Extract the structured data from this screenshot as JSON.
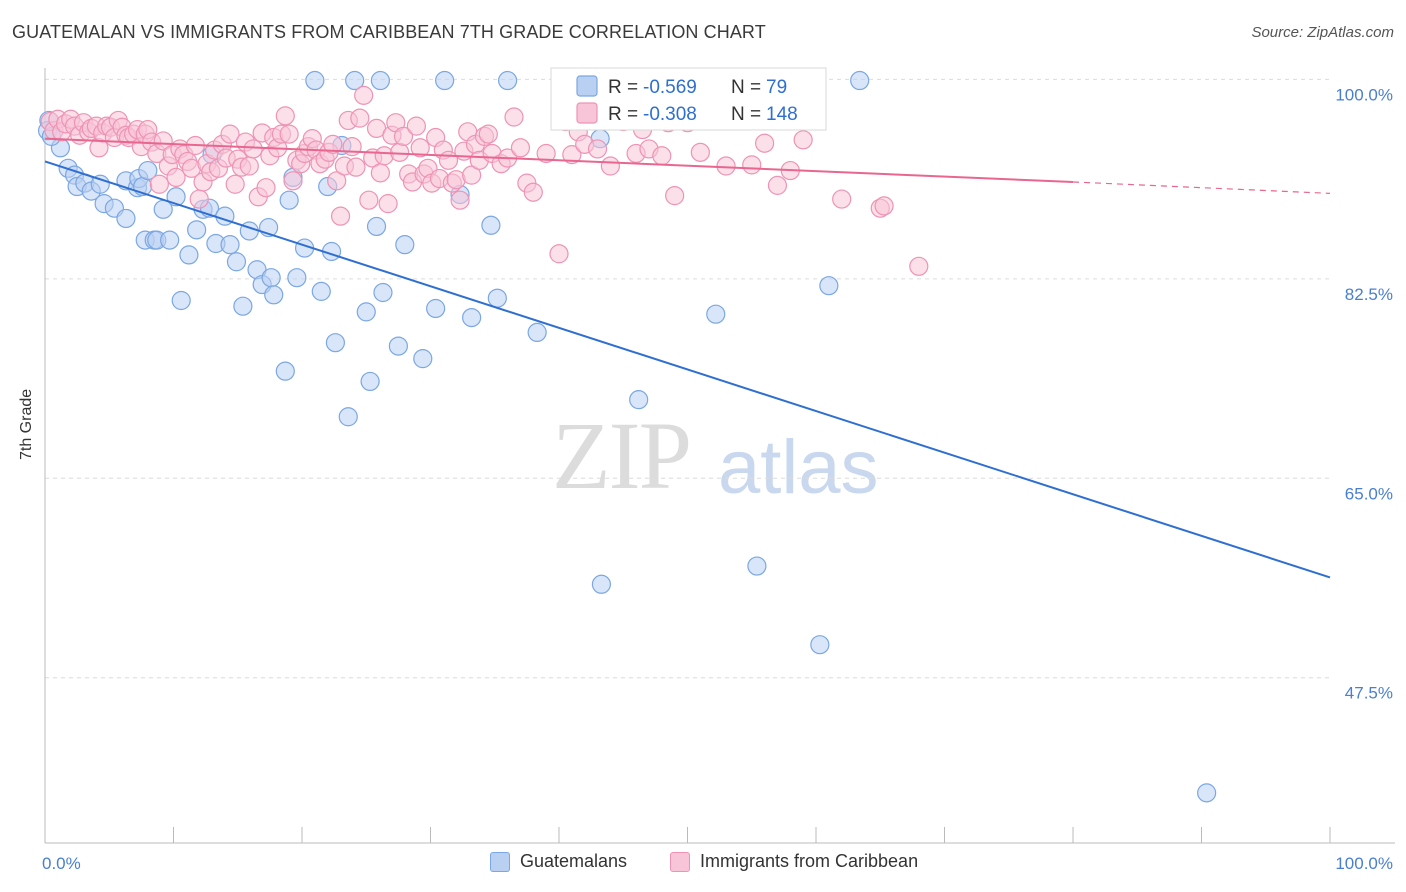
{
  "title": "GUATEMALAN VS IMMIGRANTS FROM CARIBBEAN 7TH GRADE CORRELATION CHART",
  "source": "Source: ZipAtlas.com",
  "watermark": {
    "zip": "ZIP",
    "atlas": "atlas"
  },
  "chart_data": {
    "type": "scatter",
    "xlabel": "",
    "ylabel": "7th Grade",
    "xlim": [
      0,
      100
    ],
    "ylim": [
      33,
      101
    ],
    "x_tick_labels": [
      "0.0%",
      "100.0%"
    ],
    "y_ticks": [
      {
        "value": 100,
        "label": "100.0%"
      },
      {
        "value": 82.5,
        "label": "82.5%"
      },
      {
        "value": 65,
        "label": "65.0%"
      },
      {
        "value": 47.5,
        "label": "47.5%"
      }
    ],
    "legend": [
      {
        "name": "Guatemalans",
        "r_label": "R =",
        "r": "-0.569",
        "n_label": "N =",
        "n": "79",
        "color": "#7ba7e3",
        "fill": "#b9d0f2",
        "line_color": "#2f6fd1"
      },
      {
        "name": "Immigrants from Caribbean",
        "r_label": "R =",
        "r": "-0.308",
        "n_label": "N =",
        "n": "148",
        "color": "#ee93b4",
        "fill": "#f7c5d7",
        "line_color": "#e8668f"
      }
    ],
    "series": [
      {
        "name": "Guatemalans",
        "trend": {
          "x": [
            0,
            100
          ],
          "y": [
            92.8,
            56.3
          ]
        },
        "points": [
          [
            0.3,
            96.4
          ],
          [
            1.2,
            94.0
          ],
          [
            1.8,
            92.2
          ],
          [
            2.3,
            91.6
          ],
          [
            2.5,
            90.6
          ],
          [
            3.1,
            90.9
          ],
          [
            3.6,
            90.2
          ],
          [
            4.3,
            90.8
          ],
          [
            4.6,
            89.1
          ],
          [
            5.4,
            88.7
          ],
          [
            6.3,
            91.1
          ],
          [
            6.3,
            87.8
          ],
          [
            7.2,
            90.5
          ],
          [
            7.3,
            91.3
          ],
          [
            7.6,
            90.6
          ],
          [
            8.0,
            92.0
          ],
          [
            7.8,
            85.9
          ],
          [
            8.5,
            85.9
          ],
          [
            8.7,
            85.9
          ],
          [
            9.7,
            85.9
          ],
          [
            9.2,
            88.6
          ],
          [
            10.2,
            89.7
          ],
          [
            10.6,
            80.6
          ],
          [
            11.2,
            84.6
          ],
          [
            11.8,
            86.8
          ],
          [
            12.3,
            88.6
          ],
          [
            12.8,
            88.7
          ],
          [
            13.0,
            93.4
          ],
          [
            13.3,
            85.6
          ],
          [
            14.0,
            88.0
          ],
          [
            14.4,
            85.5
          ],
          [
            14.9,
            84.0
          ],
          [
            15.4,
            80.1
          ],
          [
            15.9,
            86.7
          ],
          [
            16.5,
            83.3
          ],
          [
            16.9,
            82.0
          ],
          [
            17.4,
            87.0
          ],
          [
            17.6,
            82.6
          ],
          [
            17.8,
            81.1
          ],
          [
            18.7,
            74.4
          ],
          [
            19.0,
            89.4
          ],
          [
            19.3,
            91.4
          ],
          [
            19.6,
            82.6
          ],
          [
            20.2,
            85.2
          ],
          [
            21.0,
            99.9
          ],
          [
            21.5,
            81.4
          ],
          [
            22.0,
            90.6
          ],
          [
            22.3,
            84.9
          ],
          [
            22.6,
            76.9
          ],
          [
            23.1,
            94.2
          ],
          [
            23.6,
            70.4
          ],
          [
            24.1,
            99.9
          ],
          [
            25.0,
            79.6
          ],
          [
            25.3,
            73.5
          ],
          [
            25.8,
            87.1
          ],
          [
            26.1,
            99.9
          ],
          [
            26.3,
            81.3
          ],
          [
            27.5,
            76.6
          ],
          [
            28.0,
            85.5
          ],
          [
            29.4,
            75.5
          ],
          [
            30.4,
            79.9
          ],
          [
            31.1,
            99.9
          ],
          [
            32.3,
            89.9
          ],
          [
            33.2,
            79.1
          ],
          [
            34.7,
            87.2
          ],
          [
            35.2,
            80.8
          ],
          [
            36.0,
            99.9
          ],
          [
            38.3,
            77.8
          ],
          [
            43.2,
            94.8
          ],
          [
            43.3,
            55.7
          ],
          [
            46.2,
            71.9
          ],
          [
            52.2,
            79.4
          ],
          [
            55.4,
            57.3
          ],
          [
            60.3,
            50.4
          ],
          [
            61.0,
            81.9
          ],
          [
            90.4,
            37.4
          ],
          [
            0.2,
            95.5
          ],
          [
            0.5,
            95.0
          ],
          [
            63.4,
            99.9
          ]
        ]
      },
      {
        "name": "Immigrants from Caribbean",
        "trend": {
          "x": [
            0,
            80
          ],
          "y": [
            94.8,
            91.0
          ]
        },
        "trend_dashed": {
          "x": [
            80,
            100
          ],
          "y": [
            91.0,
            90.0
          ]
        },
        "points": [
          [
            0.4,
            96.3
          ],
          [
            0.7,
            95.5
          ],
          [
            1.0,
            96.5
          ],
          [
            1.3,
            95.4
          ],
          [
            1.6,
            96.1
          ],
          [
            2.0,
            96.5
          ],
          [
            2.3,
            95.9
          ],
          [
            2.7,
            95.1
          ],
          [
            3.0,
            96.2
          ],
          [
            3.4,
            95.4
          ],
          [
            3.6,
            95.7
          ],
          [
            4.0,
            95.9
          ],
          [
            4.2,
            94.0
          ],
          [
            4.5,
            95.3
          ],
          [
            4.8,
            95.9
          ],
          [
            5.1,
            95.8
          ],
          [
            5.4,
            94.9
          ],
          [
            5.7,
            96.4
          ],
          [
            6.0,
            95.8
          ],
          [
            6.3,
            95.1
          ],
          [
            6.5,
            94.9
          ],
          [
            6.9,
            95.2
          ],
          [
            7.2,
            95.6
          ],
          [
            7.5,
            94.1
          ],
          [
            7.8,
            95.2
          ],
          [
            8.0,
            95.6
          ],
          [
            8.3,
            94.5
          ],
          [
            8.7,
            93.5
          ],
          [
            8.9,
            90.8
          ],
          [
            9.2,
            94.6
          ],
          [
            9.6,
            92.4
          ],
          [
            9.9,
            93.4
          ],
          [
            10.2,
            91.4
          ],
          [
            10.5,
            93.9
          ],
          [
            10.8,
            93.4
          ],
          [
            11.1,
            92.8
          ],
          [
            11.4,
            92.2
          ],
          [
            11.7,
            94.2
          ],
          [
            12.0,
            89.5
          ],
          [
            12.3,
            91.0
          ],
          [
            12.6,
            92.6
          ],
          [
            12.9,
            91.9
          ],
          [
            13.2,
            93.8
          ],
          [
            13.5,
            92.2
          ],
          [
            13.8,
            94.3
          ],
          [
            14.1,
            93.1
          ],
          [
            14.4,
            95.2
          ],
          [
            14.8,
            90.8
          ],
          [
            15.0,
            93.0
          ],
          [
            15.3,
            92.3
          ],
          [
            15.6,
            94.5
          ],
          [
            15.9,
            92.4
          ],
          [
            16.2,
            93.9
          ],
          [
            16.6,
            89.7
          ],
          [
            16.9,
            95.3
          ],
          [
            17.2,
            90.5
          ],
          [
            17.5,
            93.3
          ],
          [
            17.8,
            94.9
          ],
          [
            18.1,
            94.0
          ],
          [
            18.4,
            95.2
          ],
          [
            18.7,
            96.8
          ],
          [
            19.0,
            95.2
          ],
          [
            19.3,
            91.1
          ],
          [
            19.6,
            92.9
          ],
          [
            19.9,
            92.6
          ],
          [
            20.2,
            93.5
          ],
          [
            20.5,
            94.1
          ],
          [
            20.8,
            94.8
          ],
          [
            21.1,
            93.8
          ],
          [
            21.4,
            92.6
          ],
          [
            21.8,
            93.0
          ],
          [
            22.1,
            93.6
          ],
          [
            22.4,
            94.3
          ],
          [
            22.7,
            91.1
          ],
          [
            23.0,
            88.0
          ],
          [
            23.3,
            92.4
          ],
          [
            23.6,
            96.4
          ],
          [
            23.9,
            94.1
          ],
          [
            24.2,
            92.3
          ],
          [
            24.5,
            96.6
          ],
          [
            24.8,
            98.6
          ],
          [
            25.2,
            89.4
          ],
          [
            25.5,
            93.1
          ],
          [
            25.8,
            95.7
          ],
          [
            26.1,
            91.8
          ],
          [
            26.4,
            93.3
          ],
          [
            26.7,
            89.1
          ],
          [
            27.0,
            95.1
          ],
          [
            27.3,
            96.2
          ],
          [
            27.6,
            93.6
          ],
          [
            27.9,
            95.0
          ],
          [
            28.3,
            91.7
          ],
          [
            28.6,
            91.0
          ],
          [
            28.9,
            95.9
          ],
          [
            29.2,
            94.0
          ],
          [
            29.5,
            91.7
          ],
          [
            29.8,
            92.2
          ],
          [
            30.1,
            90.9
          ],
          [
            30.4,
            94.9
          ],
          [
            30.7,
            91.3
          ],
          [
            31.0,
            93.8
          ],
          [
            31.4,
            92.9
          ],
          [
            31.7,
            90.9
          ],
          [
            32.0,
            91.2
          ],
          [
            32.3,
            89.4
          ],
          [
            32.6,
            93.7
          ],
          [
            32.9,
            95.4
          ],
          [
            33.2,
            91.6
          ],
          [
            33.5,
            94.3
          ],
          [
            33.8,
            92.9
          ],
          [
            34.2,
            95.0
          ],
          [
            34.5,
            95.2
          ],
          [
            34.8,
            93.5
          ],
          [
            35.5,
            92.6
          ],
          [
            36.0,
            93.1
          ],
          [
            36.5,
            96.7
          ],
          [
            37.0,
            94.0
          ],
          [
            37.5,
            90.9
          ],
          [
            38.0,
            90.1
          ],
          [
            39.0,
            93.5
          ],
          [
            40.0,
            84.7
          ],
          [
            40.5,
            96.3
          ],
          [
            41.0,
            93.4
          ],
          [
            41.5,
            95.4
          ],
          [
            42.0,
            94.3
          ],
          [
            43.0,
            93.9
          ],
          [
            44.0,
            92.4
          ],
          [
            45.0,
            96.3
          ],
          [
            46.0,
            93.5
          ],
          [
            47.0,
            93.9
          ],
          [
            48.0,
            93.3
          ],
          [
            48.5,
            96.2
          ],
          [
            49.0,
            89.8
          ],
          [
            50.0,
            96.2
          ],
          [
            51.0,
            93.6
          ],
          [
            52.0,
            99.9
          ],
          [
            53.0,
            92.4
          ],
          [
            54.0,
            96.7
          ],
          [
            55.0,
            92.5
          ],
          [
            56.0,
            94.4
          ],
          [
            57.0,
            90.7
          ],
          [
            59.0,
            94.7
          ],
          [
            62.0,
            89.5
          ],
          [
            65.0,
            88.7
          ],
          [
            65.3,
            88.9
          ],
          [
            68.0,
            83.6
          ],
          [
            58.0,
            92.0
          ],
          [
            46.5,
            95.6
          ]
        ]
      }
    ]
  }
}
